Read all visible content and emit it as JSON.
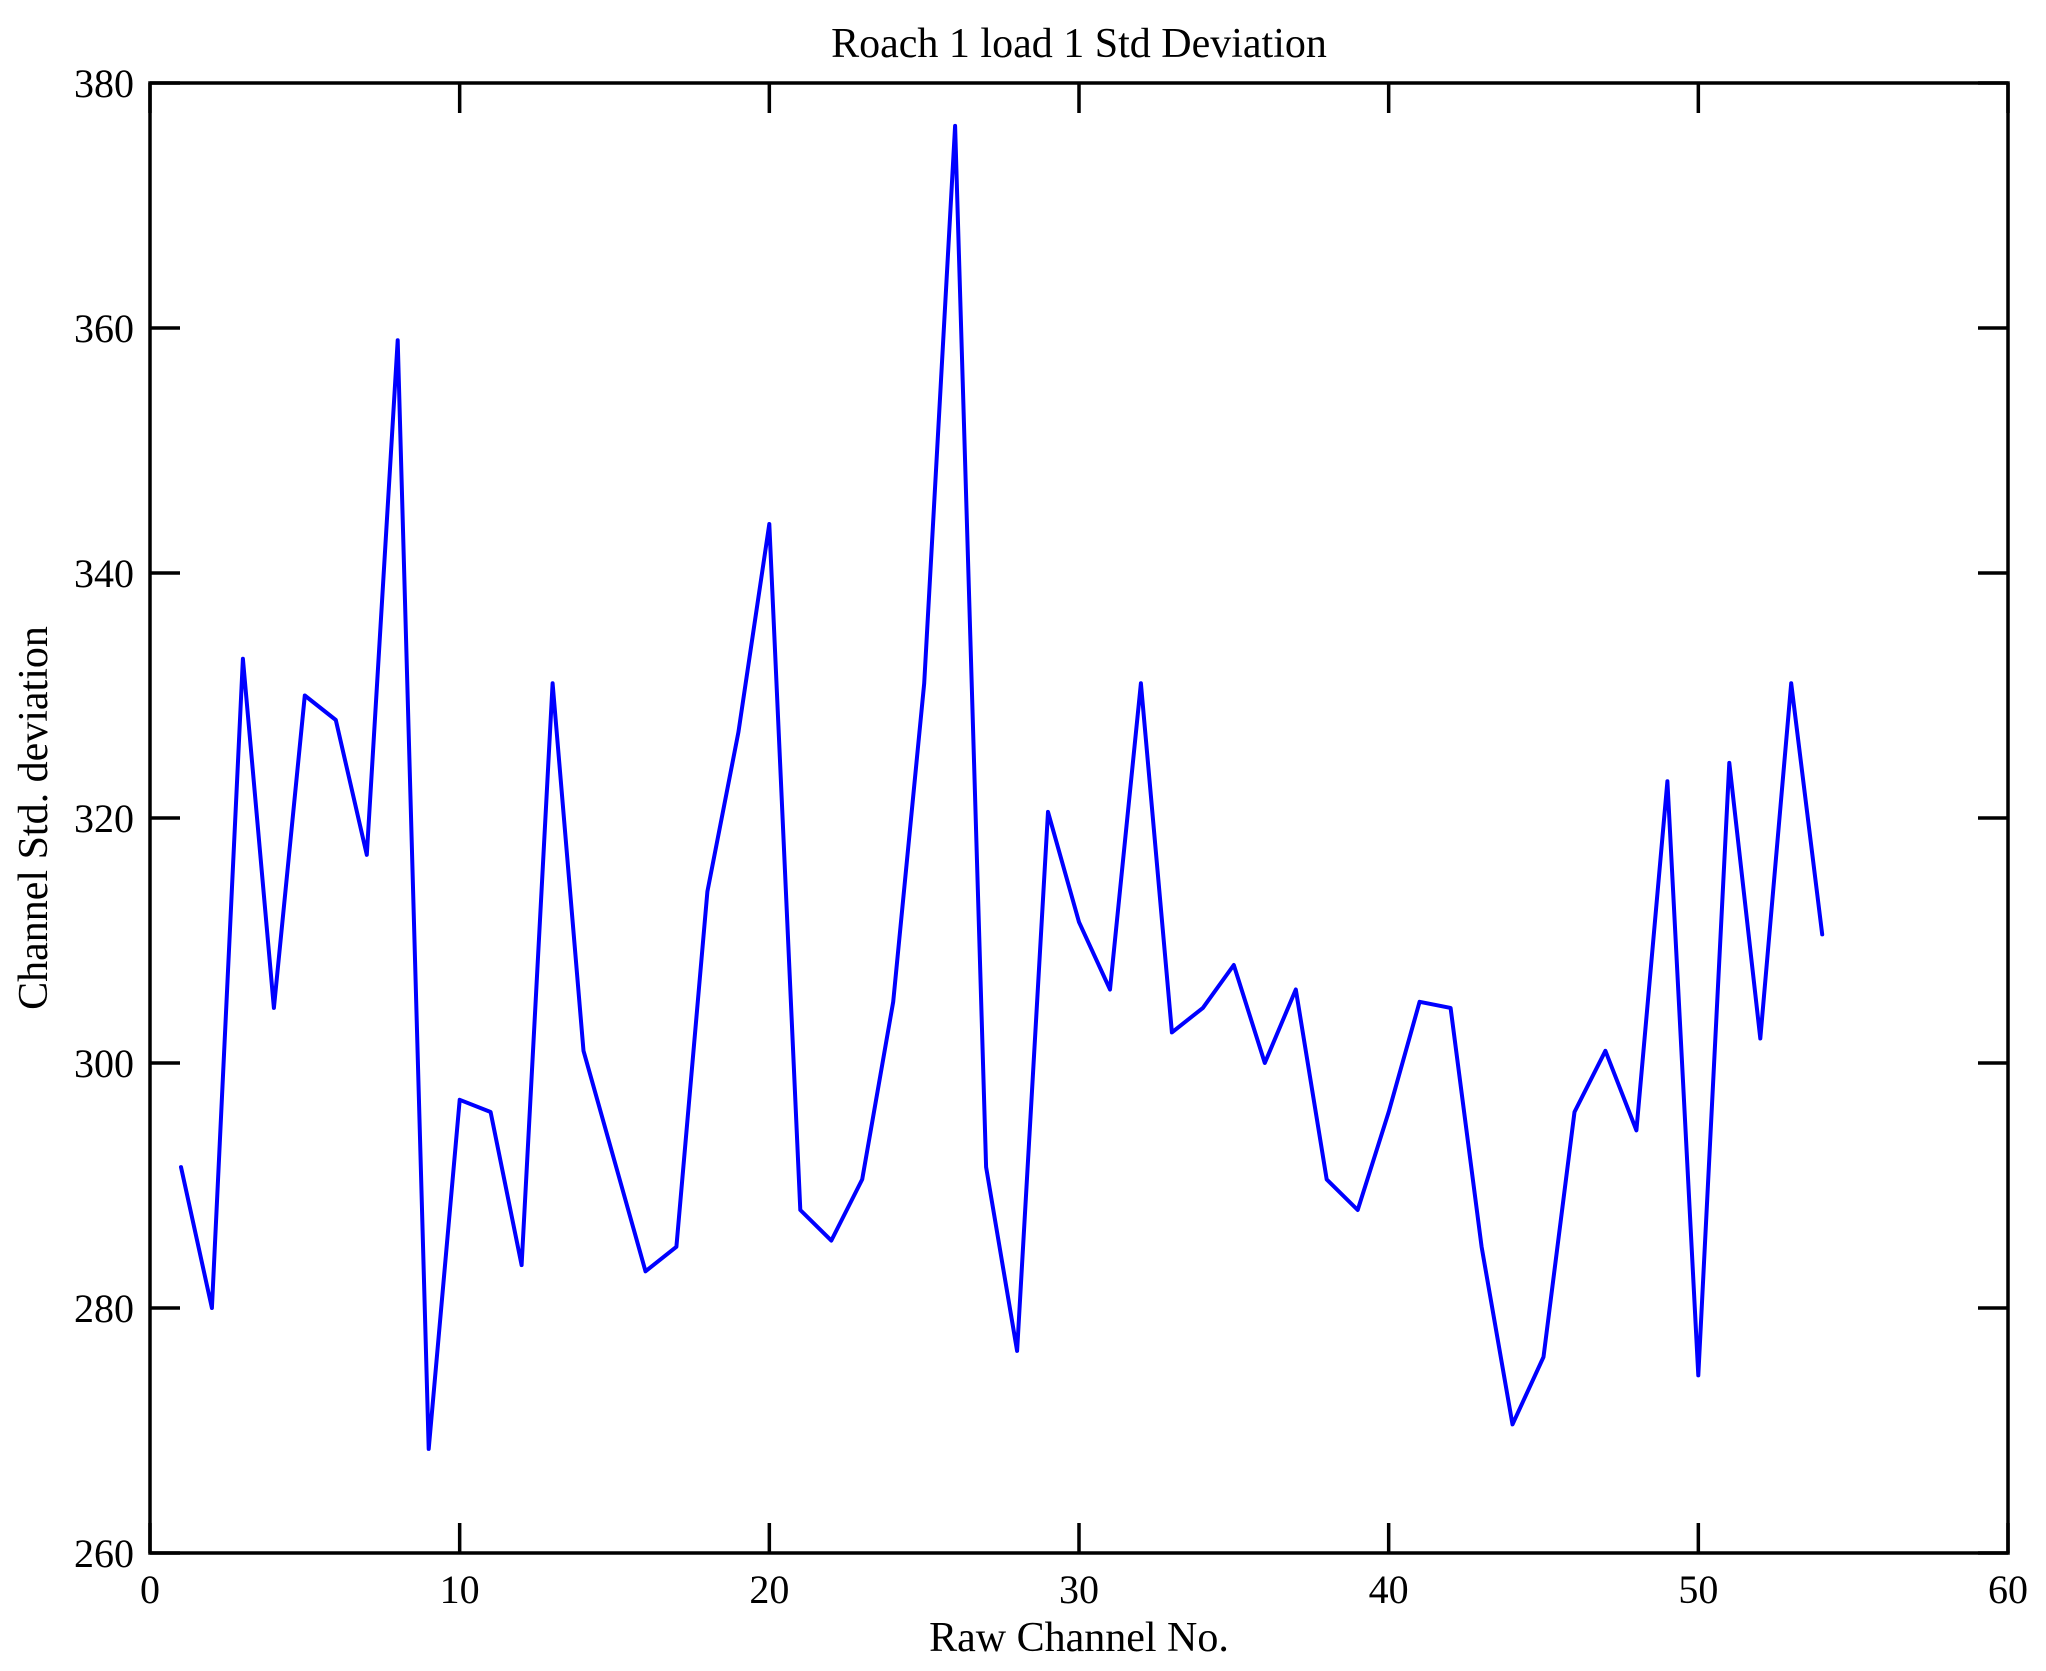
{
  "figure": {
    "background_color": "#FFFFFF",
    "axis_color": "#000000",
    "text_color": "#000000"
  },
  "chart_data": {
    "type": "line",
    "title": "Roach 1 load 1 Std Deviation",
    "xlabel": "Raw Channel No.",
    "ylabel": "Channel Std. deviation",
    "xlim": [
      0,
      60
    ],
    "ylim": [
      260,
      380
    ],
    "xticks": [
      0,
      10,
      20,
      30,
      40,
      50,
      60
    ],
    "yticks": [
      260,
      280,
      300,
      320,
      340,
      360,
      380
    ],
    "grid": false,
    "legend": null,
    "line_color": "#0000FF",
    "series": [
      {
        "name": "Channel Std deviation",
        "x": [
          1,
          2,
          3,
          4,
          5,
          6,
          7,
          8,
          9,
          10,
          11,
          12,
          13,
          14,
          15,
          16,
          17,
          18,
          19,
          20,
          21,
          22,
          23,
          24,
          25,
          26,
          27,
          28,
          29,
          30,
          31,
          32,
          33,
          34,
          35,
          36,
          37,
          38,
          39,
          40,
          41,
          42,
          43,
          44,
          45,
          46,
          47,
          48,
          49,
          50,
          51,
          52,
          53,
          54
        ],
        "values": [
          291.5,
          280,
          333,
          304.5,
          330,
          328,
          317,
          359,
          268.5,
          297,
          296,
          283.5,
          331,
          301,
          292,
          283,
          285,
          314,
          327,
          344,
          288,
          285.5,
          290.5,
          305,
          331,
          376.5,
          291.5,
          276.5,
          320.5,
          311.5,
          306,
          331,
          302.5,
          304.5,
          308,
          300,
          306,
          290.5,
          288,
          296,
          305,
          304.5,
          285,
          270.5,
          276,
          296,
          301,
          294.5,
          323,
          274.5,
          324.5,
          302,
          331,
          310.5
        ]
      }
    ]
  }
}
